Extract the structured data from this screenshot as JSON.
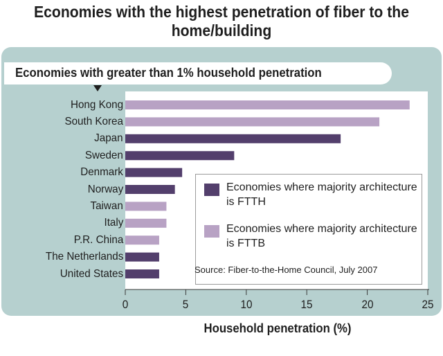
{
  "chart_data": {
    "type": "bar",
    "orientation": "horizontal",
    "title": "Economies with the highest penetration of fiber to the home/building",
    "subtitle": "Economies with greater than 1% household penetration",
    "xlabel": "Household penetration (%)",
    "ylabel": "",
    "xlim": [
      0,
      25
    ],
    "xticks": [
      0,
      5,
      10,
      15,
      20,
      25
    ],
    "categories": [
      "Hong Kong",
      "South Korea",
      "Japan",
      "Sweden",
      "Denmark",
      "Norway",
      "Taiwan",
      "Italy",
      "P.R. China",
      "The Netherlands",
      "United States"
    ],
    "values": [
      23.5,
      21.0,
      17.8,
      9.0,
      4.7,
      4.1,
      3.4,
      3.4,
      2.8,
      2.8,
      2.8
    ],
    "architecture": [
      "FTTB",
      "FTTB",
      "FTTH",
      "FTTH",
      "FTTH",
      "FTTH",
      "FTTB",
      "FTTB",
      "FTTB",
      "FTTH",
      "FTTH"
    ],
    "legend": {
      "placement": "bottom-right",
      "entries": [
        {
          "key": "FTTH",
          "label": "Economies where majority architecture is FTTH",
          "color": "#533f6c"
        },
        {
          "key": "FTTB",
          "label": "Economies where majority architecture is FTTB",
          "color": "#b8a2c4"
        }
      ]
    },
    "source": "Source:  Fiber-to-the-Home Council, July 2007",
    "grid": false
  },
  "colors": {
    "panel": "#b6d0cf",
    "ftth": "#533f6c",
    "fttb": "#b8a2c4"
  }
}
